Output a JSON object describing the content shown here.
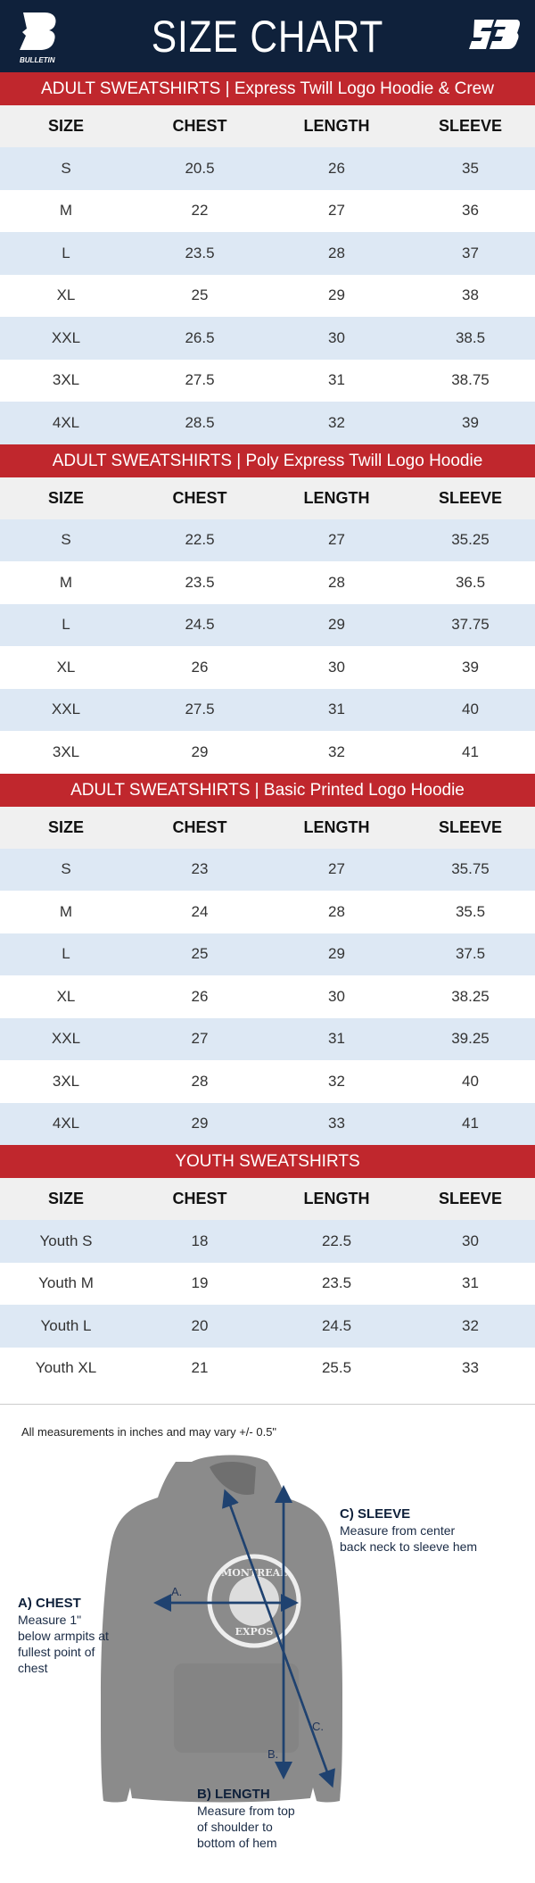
{
  "header": {
    "title": "SIZE CHART",
    "left_logo": "BULLETIN",
    "right_logo": "SB"
  },
  "columns": [
    "SIZE",
    "CHEST",
    "LENGTH",
    "SLEEVE"
  ],
  "sections": [
    {
      "title": "ADULT SWEATSHIRTS | Express Twill Logo Hoodie & Crew",
      "rows": [
        [
          "S",
          "20.5",
          "26",
          "35"
        ],
        [
          "M",
          "22",
          "27",
          "36"
        ],
        [
          "L",
          "23.5",
          "28",
          "37"
        ],
        [
          "XL",
          "25",
          "29",
          "38"
        ],
        [
          "XXL",
          "26.5",
          "30",
          "38.5"
        ],
        [
          "3XL",
          "27.5",
          "31",
          "38.75"
        ],
        [
          "4XL",
          "28.5",
          "32",
          "39"
        ]
      ]
    },
    {
      "title": "ADULT SWEATSHIRTS | Poly Express Twill Logo Hoodie",
      "rows": [
        [
          "S",
          "22.5",
          "27",
          "35.25"
        ],
        [
          "M",
          "23.5",
          "28",
          "36.5"
        ],
        [
          "L",
          "24.5",
          "29",
          "37.75"
        ],
        [
          "XL",
          "26",
          "30",
          "39"
        ],
        [
          "XXL",
          "27.5",
          "31",
          "40"
        ],
        [
          "3XL",
          "29",
          "32",
          "41"
        ]
      ]
    },
    {
      "title": "ADULT SWEATSHIRTS | Basic Printed Logo Hoodie",
      "rows": [
        [
          "S",
          "23",
          "27",
          "35.75"
        ],
        [
          "M",
          "24",
          "28",
          "35.5"
        ],
        [
          "L",
          "25",
          "29",
          "37.5"
        ],
        [
          "XL",
          "26",
          "30",
          "38.25"
        ],
        [
          "XXL",
          "27",
          "31",
          "39.25"
        ],
        [
          "3XL",
          "28",
          "32",
          "40"
        ],
        [
          "4XL",
          "29",
          "33",
          "41"
        ]
      ]
    },
    {
      "title": "YOUTH SWEATSHIRTS",
      "rows": [
        [
          "Youth S",
          "18",
          "22.5",
          "30"
        ],
        [
          "Youth M",
          "19",
          "23.5",
          "31"
        ],
        [
          "Youth L",
          "20",
          "24.5",
          "32"
        ],
        [
          "Youth XL",
          "21",
          "25.5",
          "33"
        ]
      ]
    }
  ],
  "diagram": {
    "note": "All measurements in inches and may vary +/- 0.5\"",
    "chest": {
      "title": "A) CHEST",
      "desc": "Measure 1\" below armpits at fullest point of chest"
    },
    "length": {
      "title": "B) LENGTH",
      "desc": "Measure from top of shoulder to bottom of hem"
    },
    "sleeve": {
      "title": "C) SLEEVE",
      "desc": "Measure from center back neck to sleeve hem"
    },
    "markers": {
      "a": "A.",
      "b": "B.",
      "c": "C."
    },
    "graphic_text": {
      "top": "MONTREAL",
      "bottom": "EXPOS"
    }
  },
  "colors": {
    "navy": "#0f213b",
    "red": "#c0272d",
    "row_alt": "#dde8f4",
    "header_row": "#f0f0f0",
    "arrow": "#1f4270"
  }
}
